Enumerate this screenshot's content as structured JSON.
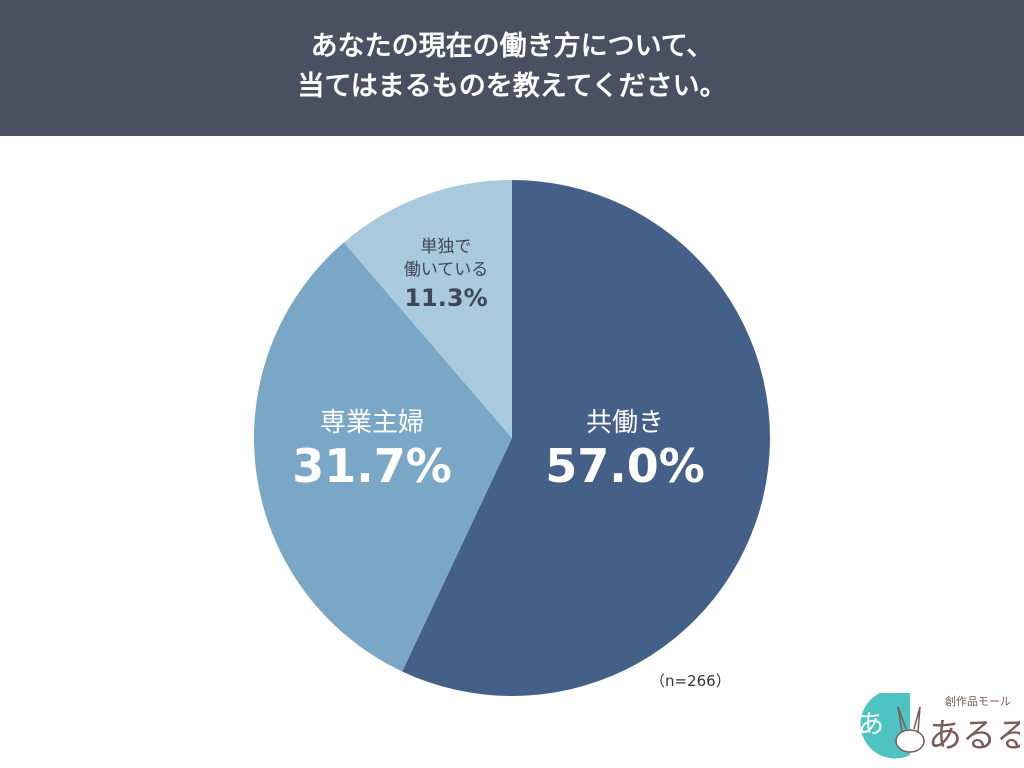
{
  "title": {
    "line1": "あなたの現在の働き方について、",
    "line2": "当てはまるものを教えてください。"
  },
  "chart_data": {
    "type": "pie",
    "categories": [
      "共働き",
      "専業主婦",
      "単独で働いている"
    ],
    "values": [
      57.0,
      31.7,
      11.3
    ],
    "value_labels": [
      "57.0%",
      "31.7%",
      "11.3%"
    ],
    "label_lines": [
      [
        "共働き"
      ],
      [
        "専業主婦"
      ],
      [
        "単独で",
        "働いている"
      ]
    ],
    "colors": [
      "#445f88",
      "#7ba7c7",
      "#a9cadd"
    ],
    "label_colors": [
      "#ffffff",
      "#ffffff",
      "#3f4656"
    ],
    "start": "top",
    "direction": "clockwise",
    "sample_note": "（n=266）"
  },
  "logo": {
    "text": "創作品モール あるる",
    "colors": {
      "circle": "#4fc3c4",
      "ink": "#7a5a52"
    }
  }
}
